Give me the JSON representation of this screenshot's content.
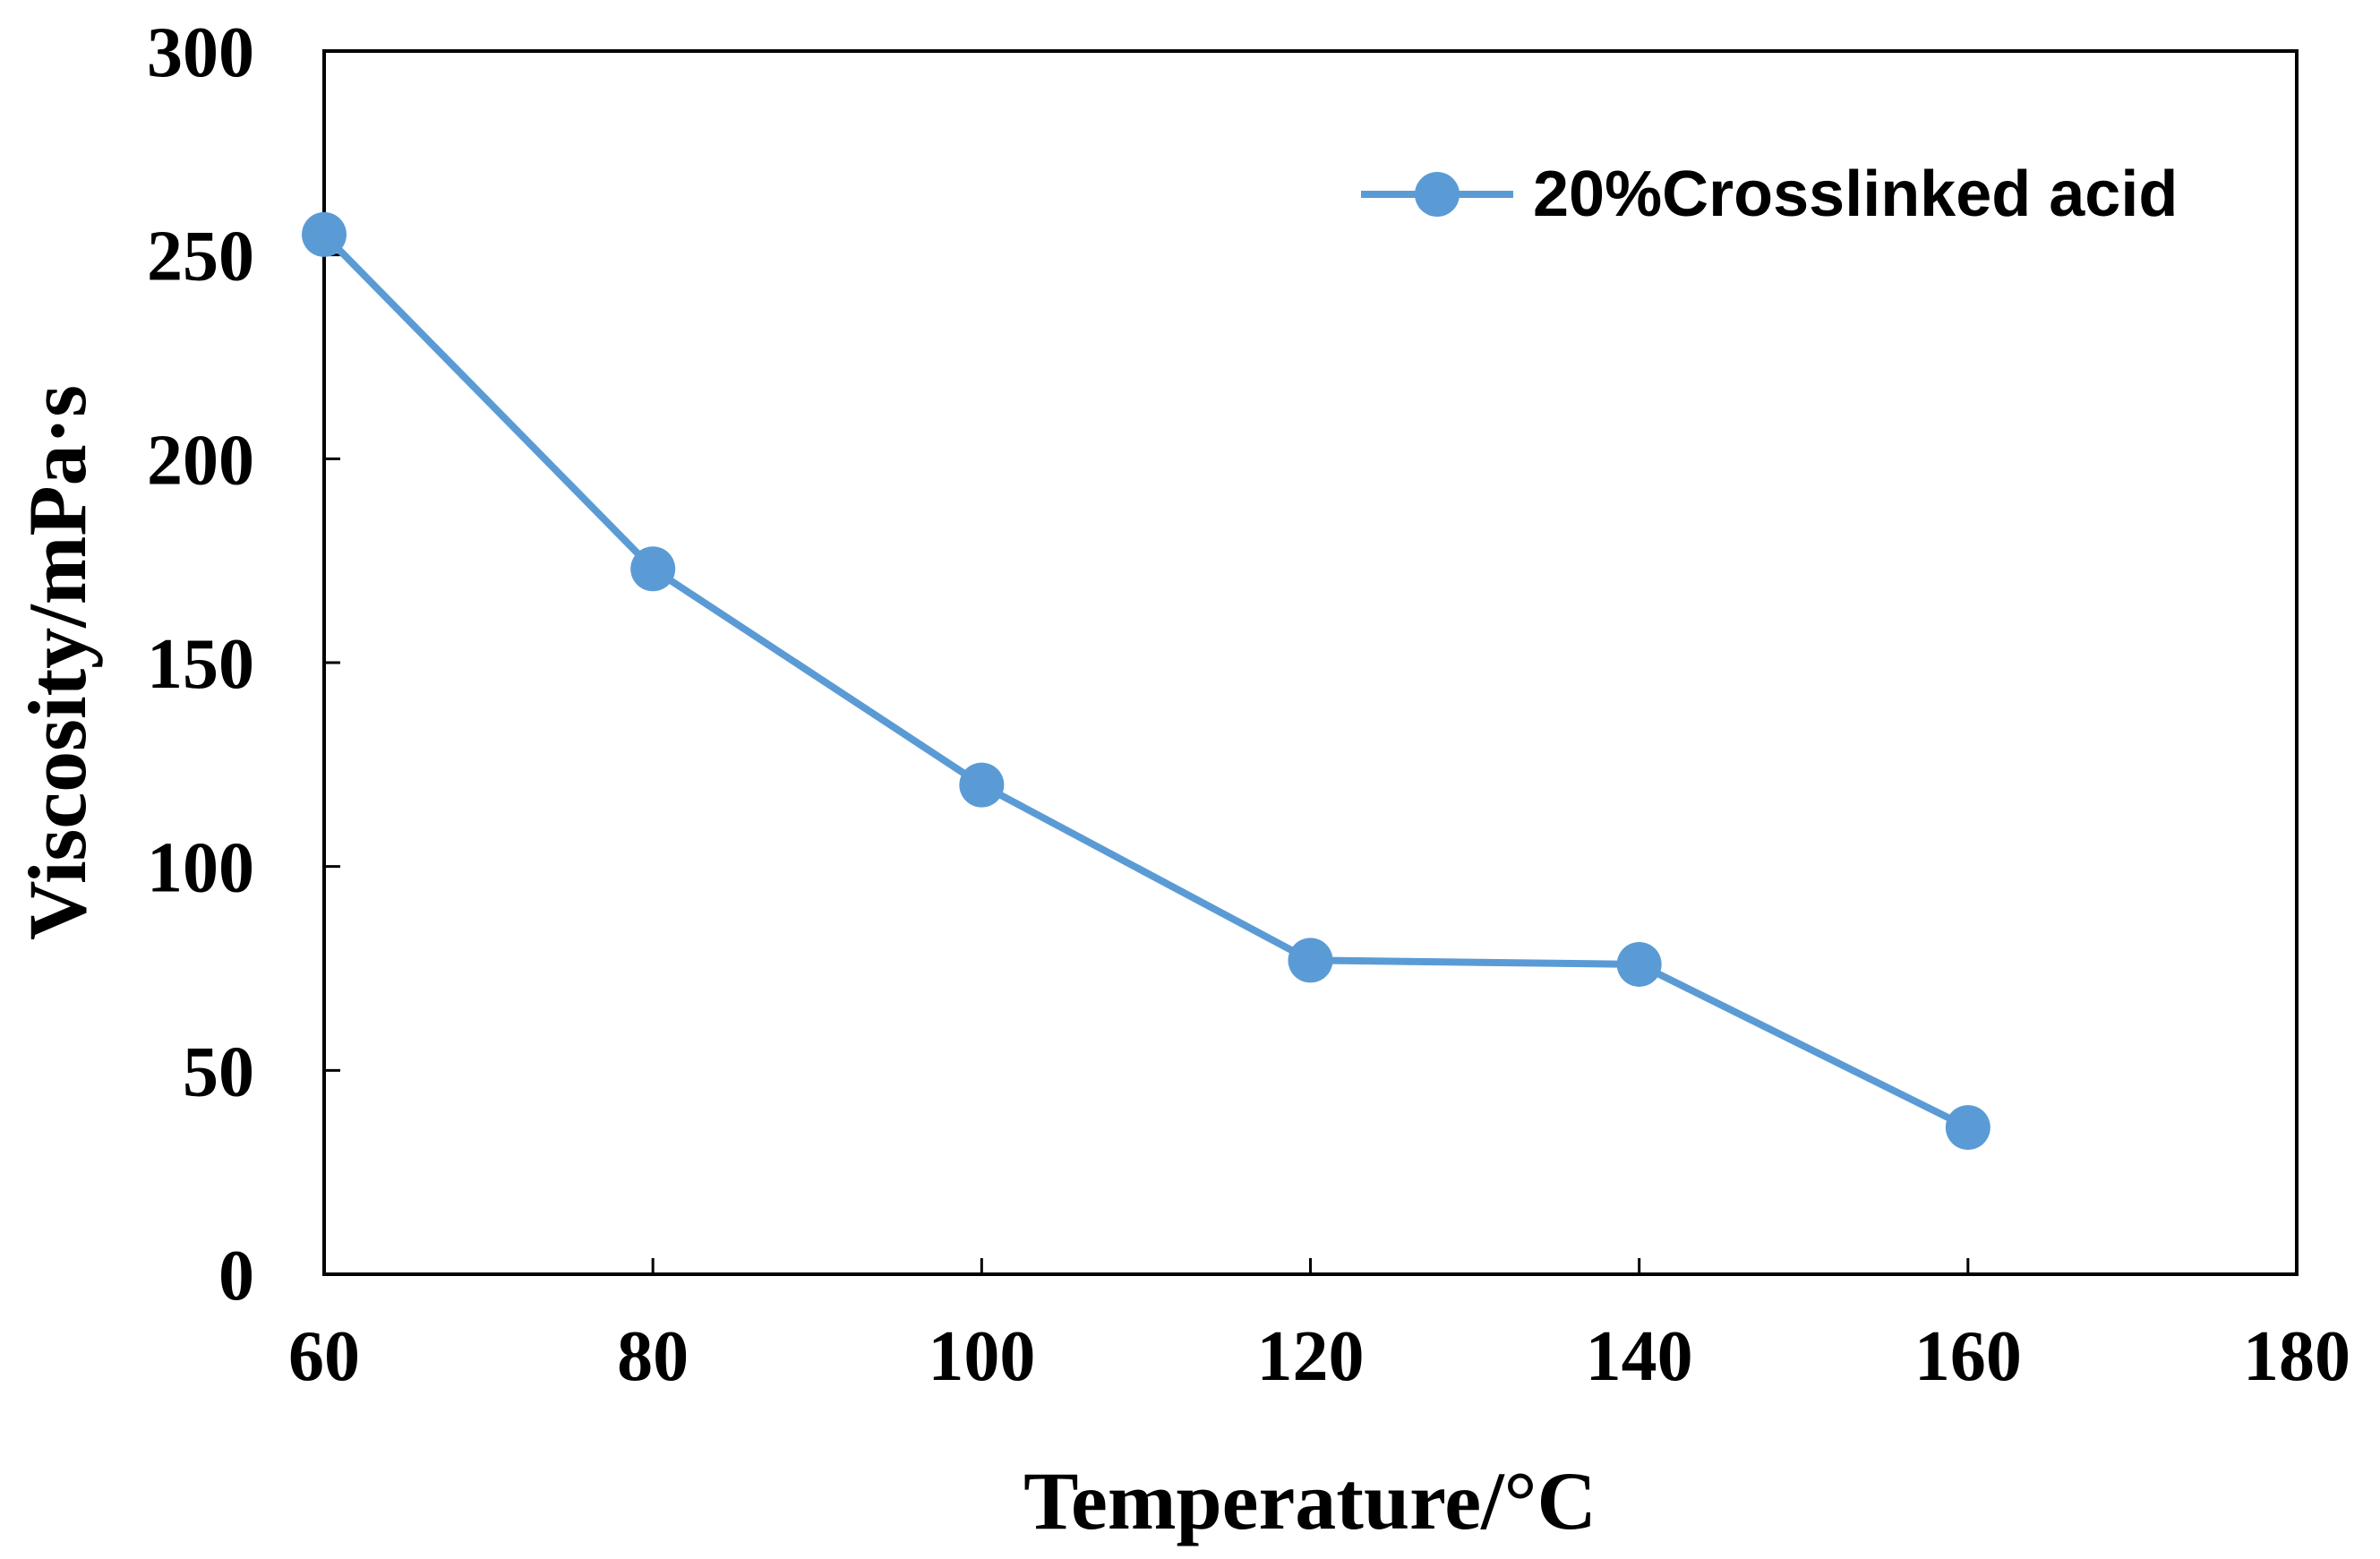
{
  "chart_data": {
    "type": "line",
    "title": "",
    "xlabel": "Temperature/°C",
    "ylabel": "Viscosity/mPa·s",
    "xlim": [
      60,
      180
    ],
    "ylim": [
      0,
      300
    ],
    "xticks": [
      60,
      80,
      100,
      120,
      140,
      160,
      180
    ],
    "yticks": [
      0,
      50,
      100,
      150,
      200,
      250,
      300
    ],
    "x_tick_labels": [
      "60",
      "80",
      "100",
      "120",
      "140",
      "160",
      "180"
    ],
    "y_tick_labels": [
      "0",
      "50",
      "100",
      "150",
      "200",
      "250",
      "300"
    ],
    "grid": false,
    "legend_position": "top-right",
    "series": [
      {
        "name": "20%Crosslinked acid",
        "color": "#5b9bd5",
        "marker": "circle",
        "x": [
          60,
          80,
          100,
          120,
          140,
          160
        ],
        "y": [
          255,
          173,
          120,
          77,
          76,
          36
        ]
      }
    ]
  }
}
